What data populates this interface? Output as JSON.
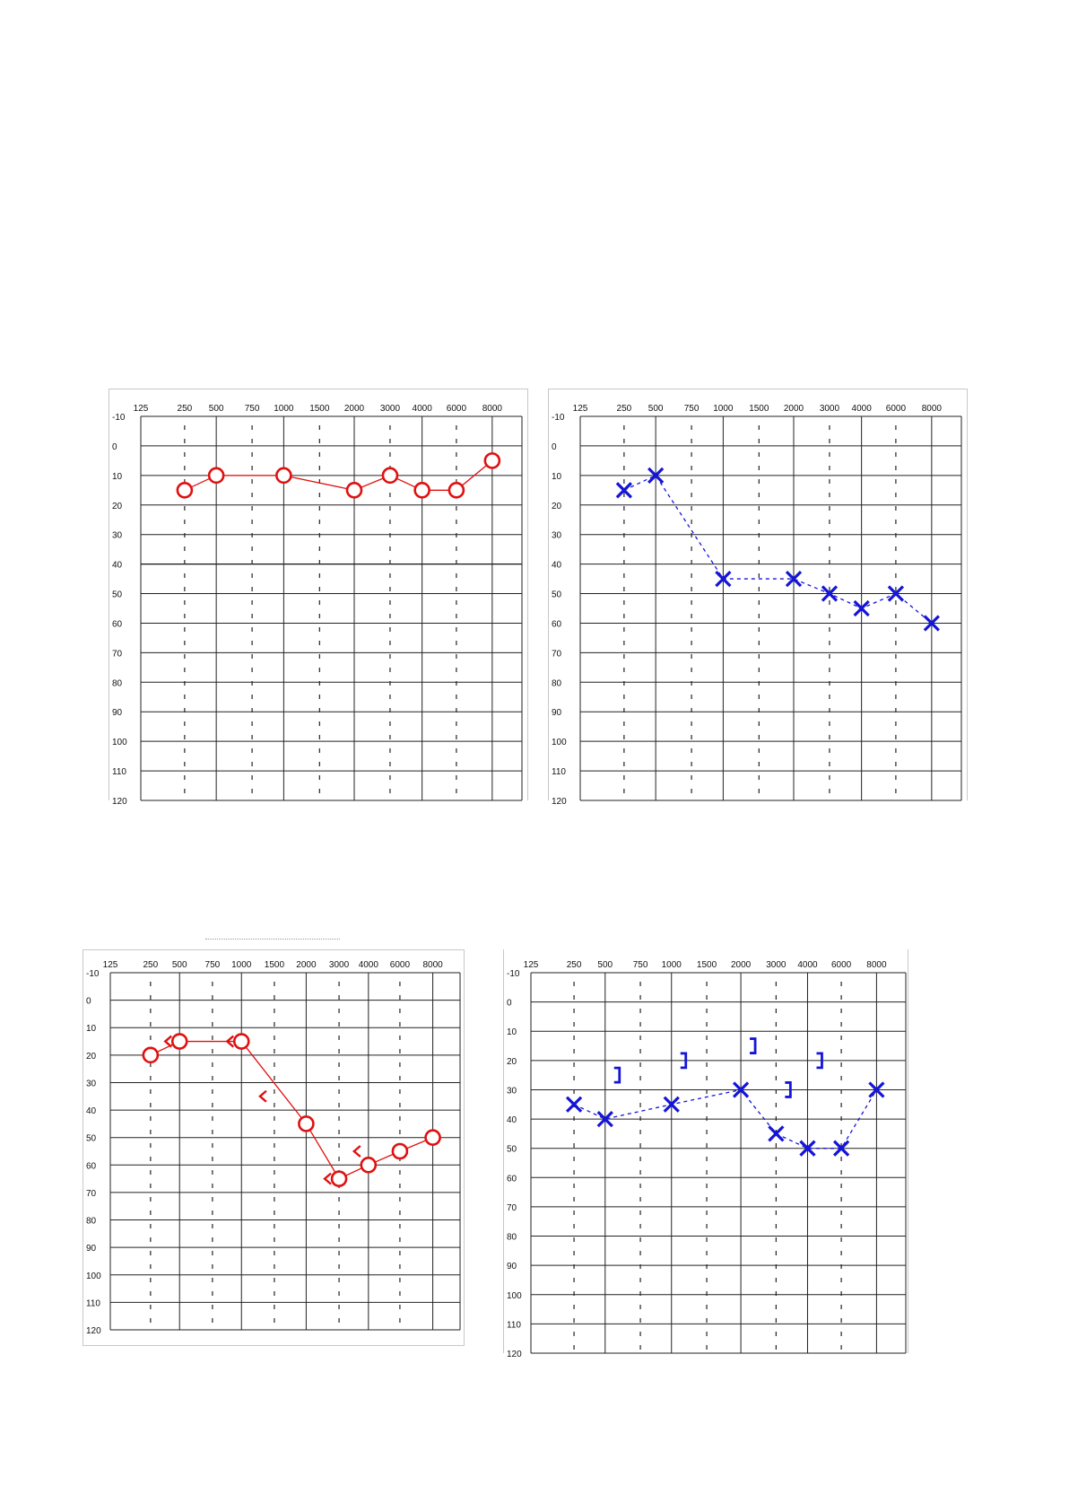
{
  "chart_data": [
    {
      "type": "line",
      "title": "",
      "xlabel": "",
      "ylabel": "",
      "x_tick_labels": [
        "125",
        "250",
        "500",
        "750",
        "1000",
        "1500",
        "2000",
        "3000",
        "4000",
        "6000",
        "8000"
      ],
      "y_tick_labels": [
        "-10",
        "0",
        "10",
        "20",
        "30",
        "40",
        "50",
        "60",
        "70",
        "80",
        "90",
        "100",
        "110",
        "120"
      ],
      "ylim": [
        -10,
        120
      ],
      "y_inverted": true,
      "grid": true,
      "series": [
        {
          "marker": "circle",
          "line": "solid",
          "color": "#e01010",
          "x": [
            "250",
            "500",
            "1000",
            "2000",
            "3000",
            "4000",
            "6000",
            "8000"
          ],
          "values": [
            15,
            10,
            10,
            15,
            10,
            15,
            15,
            5
          ]
        }
      ]
    },
    {
      "type": "line",
      "title": "",
      "xlabel": "",
      "ylabel": "",
      "x_tick_labels": [
        "125",
        "250",
        "500",
        "750",
        "1000",
        "1500",
        "2000",
        "3000",
        "4000",
        "6000",
        "8000"
      ],
      "y_tick_labels": [
        "-10",
        "0",
        "10",
        "20",
        "30",
        "40",
        "50",
        "60",
        "70",
        "80",
        "90",
        "100",
        "110",
        "120"
      ],
      "ylim": [
        -10,
        120
      ],
      "y_inverted": true,
      "grid": true,
      "series": [
        {
          "marker": "x",
          "line": "dashed",
          "color": "#1515d8",
          "x": [
            "250",
            "500",
            "1000",
            "2000",
            "3000",
            "4000",
            "6000",
            "8000"
          ],
          "values": [
            15,
            10,
            45,
            45,
            50,
            55,
            50,
            60
          ]
        }
      ]
    },
    {
      "type": "line",
      "title": "",
      "xlabel": "",
      "ylabel": "",
      "x_tick_labels": [
        "125",
        "250",
        "500",
        "750",
        "1000",
        "1500",
        "2000",
        "3000",
        "4000",
        "6000",
        "8000"
      ],
      "y_tick_labels": [
        "-10",
        "0",
        "10",
        "20",
        "30",
        "40",
        "50",
        "60",
        "70",
        "80",
        "90",
        "100",
        "110",
        "120"
      ],
      "ylim": [
        -10,
        120
      ],
      "y_inverted": true,
      "grid": true,
      "series": [
        {
          "marker": "circle",
          "line": "solid",
          "color": "#e01010",
          "x": [
            "250",
            "500",
            "1000",
            "2000",
            "3000",
            "4000",
            "6000",
            "8000"
          ],
          "values": [
            20,
            15,
            15,
            45,
            65,
            60,
            55,
            50
          ]
        },
        {
          "marker": "bracket-left",
          "line": "none",
          "color": "#e01010",
          "x": [
            "500",
            "1000",
            "1500",
            "3000",
            "4000"
          ],
          "values": [
            15,
            15,
            35,
            65,
            55
          ]
        }
      ]
    },
    {
      "type": "line",
      "title": "",
      "xlabel": "",
      "ylabel": "",
      "x_tick_labels": [
        "125",
        "250",
        "500",
        "750",
        "1000",
        "1500",
        "2000",
        "3000",
        "4000",
        "6000",
        "8000"
      ],
      "y_tick_labels": [
        "-10",
        "0",
        "10",
        "20",
        "30",
        "40",
        "50",
        "60",
        "70",
        "80",
        "90",
        "100",
        "110",
        "120"
      ],
      "ylim": [
        -10,
        120
      ],
      "y_inverted": true,
      "grid": true,
      "series": [
        {
          "marker": "x",
          "line": "dashed",
          "color": "#1515d8",
          "x": [
            "250",
            "500",
            "1000",
            "2000",
            "3000",
            "4000",
            "6000",
            "8000"
          ],
          "values": [
            35,
            40,
            35,
            30,
            45,
            50,
            50,
            30
          ]
        },
        {
          "marker": "bracket-right",
          "line": "none",
          "color": "#1515d8",
          "x": [
            "500",
            "1000",
            "2000",
            "3000",
            "4000"
          ],
          "values": [
            25,
            20,
            15,
            30,
            20
          ]
        }
      ]
    }
  ]
}
